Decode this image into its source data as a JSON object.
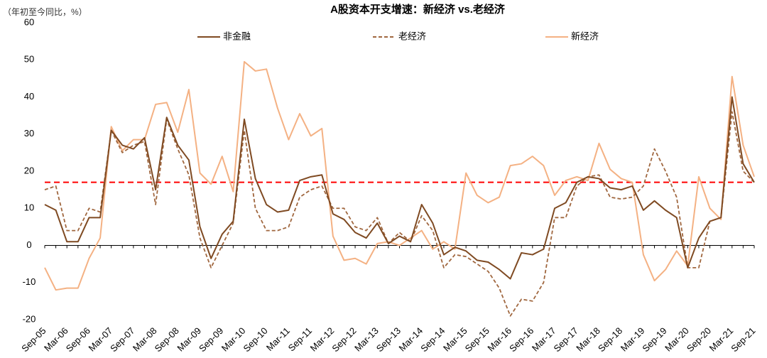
{
  "chart_data": {
    "type": "line",
    "title": "A股资本开支增速：新经济 vs.老经济",
    "y_label": "（年初至今同比，%）",
    "categories": [
      "Sep-05",
      null,
      "Mar-06",
      null,
      "Sep-06",
      null,
      "Mar-07",
      null,
      "Sep-07",
      null,
      "Mar-08",
      null,
      "Sep-08",
      null,
      "Mar-09",
      null,
      "Sep-09",
      null,
      "Mar-10",
      null,
      "Sep-10",
      null,
      "Mar-11",
      null,
      "Sep-11",
      null,
      "Mar-12",
      null,
      "Sep-12",
      null,
      "Mar-13",
      null,
      "Sep-13",
      null,
      "Mar-14",
      null,
      "Sep-14",
      null,
      "Mar-15",
      null,
      "Sep-15",
      null,
      "Mar-16",
      null,
      "Sep-16",
      null,
      "Mar-17",
      null,
      "Sep-17",
      null,
      "Mar-18",
      null,
      "Sep-18",
      null,
      "Mar-19",
      null,
      "Sep-19",
      null,
      "Mar-20",
      null,
      "Sep-20",
      null,
      "Mar-21",
      null,
      "Sep-21"
    ],
    "series": [
      {
        "name": "非金融",
        "color": "#7f4a22",
        "dashed": false,
        "values": [
          11,
          9.5,
          1,
          1,
          7.5,
          7.5,
          31,
          27,
          26,
          29,
          15,
          34.5,
          27,
          23,
          5,
          -3.5,
          3,
          6.5,
          34,
          18,
          11,
          9,
          9.5,
          17.5,
          18.5,
          19,
          8.5,
          7,
          3.5,
          2,
          6,
          0.5,
          2.5,
          1,
          11,
          6,
          -2.5,
          -0.5,
          -1.5,
          -4,
          -4.5,
          -6.5,
          -9,
          -2,
          -2.5,
          -1,
          10,
          11.5,
          17,
          18.5,
          18,
          15.5,
          15,
          16,
          9.5,
          12,
          9.5,
          7.5,
          -6,
          2,
          6.5,
          7.5,
          40,
          22,
          17
        ]
      },
      {
        "name": "老经济",
        "color": "#a0673f",
        "dashed": true,
        "values": [
          15,
          16,
          4,
          4,
          10,
          9,
          31,
          25,
          27,
          28,
          11,
          34,
          26,
          19,
          2,
          -6,
          0,
          6,
          31,
          10,
          4,
          4,
          5,
          13,
          15,
          16,
          10,
          10,
          5,
          4,
          7.5,
          0.5,
          3.5,
          1,
          8,
          4,
          -6,
          -2.5,
          -3,
          -5,
          -7,
          -11.5,
          -19,
          -14.5,
          -15,
          -10,
          7.5,
          7.5,
          16,
          18.5,
          19,
          13,
          12.5,
          13,
          16,
          26,
          20,
          13,
          -6,
          -6,
          6.5,
          7.5,
          36,
          20,
          17
        ]
      },
      {
        "name": "新经济",
        "color": "#f4b183",
        "dashed": false,
        "values": [
          -6,
          -12,
          -11.5,
          -11.5,
          -3.5,
          2,
          32,
          25.5,
          28.5,
          28.5,
          38,
          38.5,
          30.5,
          42,
          19.5,
          16.5,
          24,
          14.5,
          49.5,
          47,
          47.5,
          37,
          28.5,
          35.5,
          29.5,
          31.5,
          2.5,
          -4,
          -3.5,
          -5,
          0.5,
          1,
          0,
          2,
          4,
          -1,
          1,
          -1,
          19.5,
          13.5,
          11.5,
          13,
          21.5,
          22,
          24,
          21.5,
          13.5,
          17.5,
          18.5,
          17.5,
          27.5,
          20.5,
          18,
          17,
          -2.5,
          -9.5,
          -6.5,
          -1.5,
          -5.5,
          18.5,
          10,
          7,
          45.5,
          27,
          18.5
        ]
      }
    ],
    "reference_line": {
      "value": 17,
      "color": "#ff0000"
    },
    "ylim": [
      -20,
      60
    ],
    "yticks": [
      -20,
      -10,
      0,
      10,
      20,
      30,
      40,
      50,
      60
    ],
    "grid": false,
    "legend": "top"
  }
}
